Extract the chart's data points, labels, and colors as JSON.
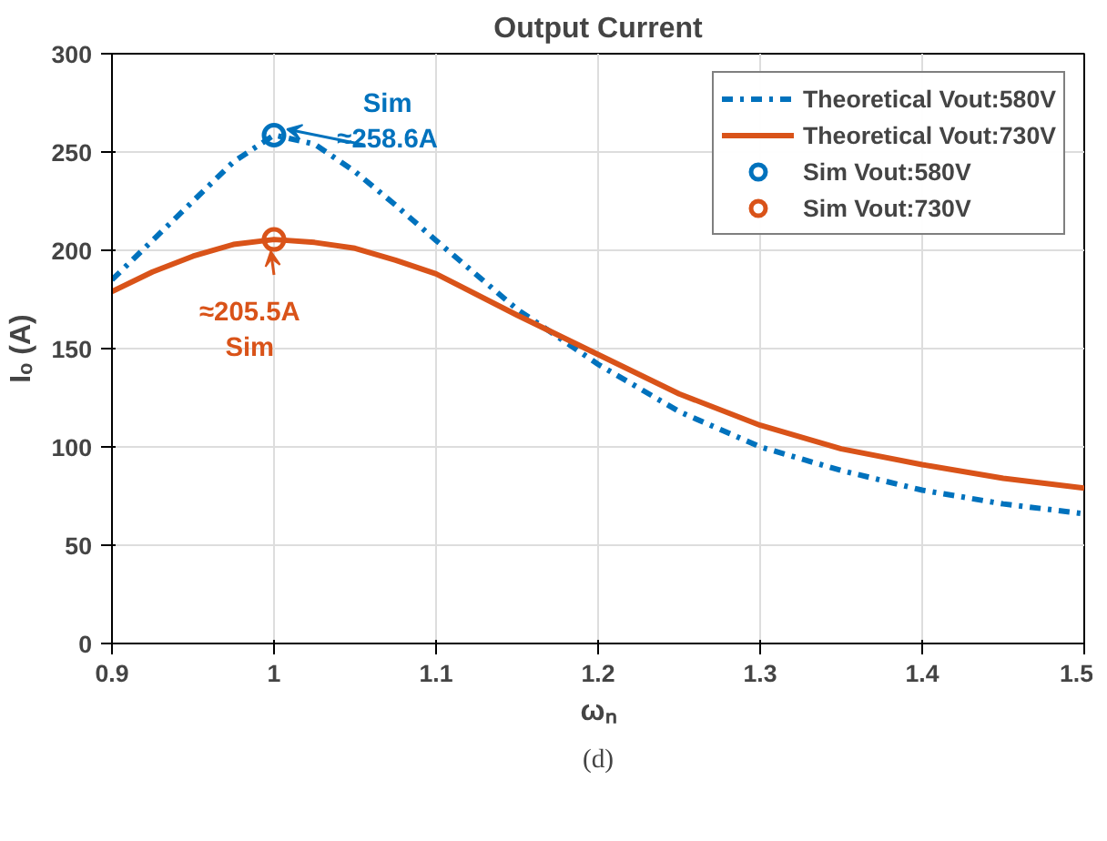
{
  "chart_data": {
    "type": "line",
    "title": "Output Current",
    "xlabel": "ωₙ",
    "ylabel": "Iₒ (A)",
    "xlim": [
      0.9,
      1.5
    ],
    "ylim": [
      0,
      300
    ],
    "xticks": [
      0.9,
      1,
      1.1,
      1.2,
      1.3,
      1.4,
      1.5
    ],
    "yticks": [
      0,
      50,
      100,
      150,
      200,
      250,
      300
    ],
    "grid": true,
    "legend": "top right",
    "series": [
      {
        "name": "Theoretical Vout:580V",
        "line_style": "dashdot",
        "color": "#0072bd",
        "x": [
          0.9,
          0.925,
          0.95,
          0.975,
          1.0,
          1.025,
          1.05,
          1.075,
          1.1,
          1.15,
          1.2,
          1.25,
          1.3,
          1.35,
          1.4,
          1.45,
          1.5
        ],
        "values": [
          185,
          205,
          225,
          245,
          258.6,
          254,
          240,
          223,
          205,
          170,
          142,
          118,
          100,
          88,
          78,
          71,
          66
        ]
      },
      {
        "name": "Theoretical Vout:730V",
        "line_style": "solid",
        "color": "#d95319",
        "x": [
          0.9,
          0.925,
          0.95,
          0.975,
          1.0,
          1.025,
          1.05,
          1.075,
          1.1,
          1.15,
          1.2,
          1.25,
          1.3,
          1.35,
          1.4,
          1.45,
          1.5
        ],
        "values": [
          179,
          189,
          197,
          203,
          205.5,
          204,
          201,
          195,
          188,
          167,
          147,
          127,
          111,
          99,
          91,
          84,
          79
        ]
      },
      {
        "name": "Sim Vout:580V",
        "type": "scatter",
        "marker": "circle",
        "color": "#0072bd",
        "x": [
          1.0
        ],
        "values": [
          258.6
        ]
      },
      {
        "name": "Sim Vout:730V",
        "type": "scatter",
        "marker": "circle",
        "color": "#d95319",
        "x": [
          1.0
        ],
        "values": [
          205.5
        ]
      }
    ],
    "annotations": [
      {
        "text": "Sim\n≈258.6A",
        "x": 1.0,
        "y": 258.6
      },
      {
        "text": "≈205.5A\nSim",
        "x": 1.0,
        "y": 205.5
      },
      "(d)"
    ]
  }
}
